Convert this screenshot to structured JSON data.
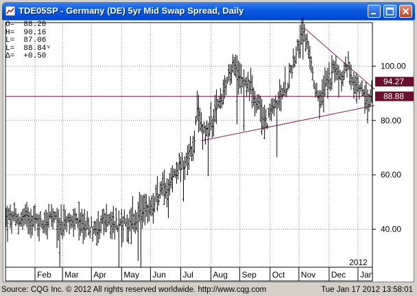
{
  "window": {
    "title": "TDE05SP - Germany (DE) 5yr Mid Swap Spread, Daily",
    "icon": "chart-app-icon",
    "buttons": [
      "minimize-icon",
      "maximize-icon",
      "close-icon"
    ]
  },
  "readouts": {
    "open": "O=  88.20",
    "high": "H=  90.16",
    "low": "L=  87.06",
    "last": "L=  88.84ᵛ",
    "delta": "Δ=  +0.50"
  },
  "footer": {
    "source": "Source: CQG Inc. © 2012 All rights reserved worldwide. http://www.cqg.com",
    "timestamp": "Tue Jan 17 2012 13:58:01"
  },
  "colors": {
    "price": "#000000",
    "trendline": "#8b1a4a",
    "grid": "#808080",
    "badge_bg": "#6b0f2e",
    "badge_text": "#ffffff"
  },
  "chart_data": {
    "type": "ohlc",
    "title": "TDE05SP - Germany (DE) 5yr Mid Swap Spread, Daily",
    "ylim": [
      26,
      116
    ],
    "y_ticks": [
      "100.00",
      "80.00",
      "60.00",
      "40.00"
    ],
    "y_tick_values": [
      100,
      80,
      60,
      40
    ],
    "x_tick_labels": [
      "Feb",
      "Mar",
      "Apr",
      "May",
      "Jun",
      "Jul",
      "Aug",
      "Sep",
      "Oct",
      "Nov",
      "Dec",
      "Jan"
    ],
    "x_tick_day_index": [
      21,
      41,
      62,
      84,
      105,
      127,
      149,
      170,
      192,
      213,
      235,
      256
    ],
    "year_label": "2012",
    "grid": true,
    "price_badges": [
      {
        "label": "94.27",
        "value": 94.27
      },
      {
        "label": "88.88",
        "value": 88.88
      }
    ],
    "horizontal_line": {
      "value": 88.88
    },
    "trendlines": [
      {
        "name": "lower",
        "x1_day": 142,
        "y1": 72.5,
        "x2_day": 268,
        "y2": 85.5
      },
      {
        "name": "upper",
        "x1_day": 217,
        "y1": 114,
        "x2_day": 268,
        "y2": 91.5
      }
    ],
    "close_keypoints": [
      [
        0,
        44
      ],
      [
        8,
        43
      ],
      [
        16,
        45
      ],
      [
        24,
        42
      ],
      [
        32,
        44
      ],
      [
        40,
        41
      ],
      [
        48,
        43
      ],
      [
        56,
        42
      ],
      [
        64,
        40
      ],
      [
        72,
        43
      ],
      [
        80,
        42
      ],
      [
        88,
        42
      ],
      [
        96,
        44
      ],
      [
        102,
        46
      ],
      [
        108,
        50
      ],
      [
        114,
        55
      ],
      [
        120,
        58
      ],
      [
        124,
        62
      ],
      [
        128,
        64
      ],
      [
        132,
        66
      ],
      [
        136,
        70
      ],
      [
        139,
        82
      ],
      [
        142,
        78
      ],
      [
        146,
        76
      ],
      [
        150,
        80
      ],
      [
        154,
        85
      ],
      [
        158,
        90
      ],
      [
        162,
        96
      ],
      [
        166,
        100
      ],
      [
        170,
        98
      ],
      [
        174,
        95
      ],
      [
        178,
        92
      ],
      [
        182,
        88
      ],
      [
        186,
        82
      ],
      [
        190,
        80
      ],
      [
        194,
        84
      ],
      [
        198,
        88
      ],
      [
        202,
        90
      ],
      [
        206,
        96
      ],
      [
        210,
        104
      ],
      [
        214,
        108
      ],
      [
        217,
        112
      ],
      [
        220,
        106
      ],
      [
        224,
        92
      ],
      [
        228,
        86
      ],
      [
        232,
        92
      ],
      [
        236,
        96
      ],
      [
        240,
        98
      ],
      [
        244,
        95
      ],
      [
        248,
        100
      ],
      [
        252,
        96
      ],
      [
        256,
        92
      ],
      [
        260,
        88
      ],
      [
        263,
        86
      ],
      [
        266,
        88.8
      ]
    ],
    "bar_range_min": 3,
    "bar_range_max": 12,
    "n_days": 267
  }
}
